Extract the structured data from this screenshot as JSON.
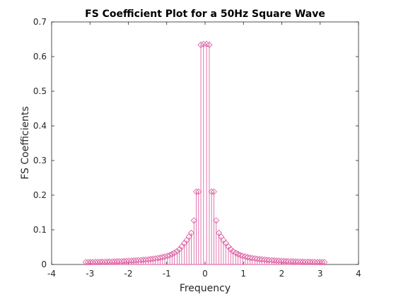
{
  "chart_data": {
    "type": "stem",
    "title": "FS Coefficient Plot for a 50Hz Square Wave",
    "xlabel": "Frequency",
    "ylabel": "FS Coefficients",
    "xlim": [
      -4,
      4
    ],
    "ylim": [
      0,
      0.7
    ],
    "xticks": [
      "-4",
      "-3",
      "-2",
      "-1",
      "0",
      "1",
      "2",
      "3",
      "4"
    ],
    "yticks": [
      "0",
      "0.1",
      "0.2",
      "0.3",
      "0.4",
      "0.5",
      "0.6",
      "0.7"
    ],
    "grid": false,
    "color": "#d9559a",
    "marker": "diamond",
    "series": [
      {
        "x": [
          -3.11,
          -3.05,
          -2.99,
          -2.93,
          -2.86,
          -2.8,
          -2.74,
          -2.68,
          -2.61,
          -2.55,
          -2.49,
          -2.42,
          -2.36,
          -2.3,
          -2.24,
          -2.17,
          -2.11,
          -2.05,
          -1.99,
          -1.92,
          -1.86,
          -1.8,
          -1.74,
          -1.67,
          -1.61,
          -1.55,
          -1.48,
          -1.42,
          -1.36,
          -1.3,
          -1.23,
          -1.17,
          -1.11,
          -1.05,
          -0.98,
          -0.92,
          -0.86,
          -0.8,
          -0.73,
          -0.67,
          -0.61,
          -0.54,
          -0.48,
          -0.42,
          -0.36,
          -0.29,
          -0.23,
          -0.17,
          -0.11,
          -0.04,
          0.04,
          0.11,
          0.17,
          0.23,
          0.29,
          0.36,
          0.42,
          0.48,
          0.54,
          0.61,
          0.67,
          0.73,
          0.8,
          0.86,
          0.92,
          0.98,
          1.05,
          1.11,
          1.17,
          1.23,
          1.3,
          1.36,
          1.42,
          1.48,
          1.55,
          1.61,
          1.67,
          1.74,
          1.8,
          1.86,
          1.92,
          1.99,
          2.05,
          2.11,
          2.17,
          2.24,
          2.3,
          2.36,
          2.42,
          2.49,
          2.55,
          2.61,
          2.68,
          2.74,
          2.8,
          2.86,
          2.93,
          2.99,
          3.05,
          3.11
        ],
        "y": [
          0.0064,
          0.0066,
          0.0067,
          0.0068,
          0.007,
          0.0071,
          0.0073,
          0.0075,
          0.0076,
          0.0078,
          0.008,
          0.0082,
          0.0085,
          0.0087,
          0.009,
          0.0092,
          0.0095,
          0.0099,
          0.0102,
          0.0106,
          0.011,
          0.0115,
          0.012,
          0.0125,
          0.0131,
          0.0137,
          0.0144,
          0.0152,
          0.0161,
          0.0171,
          0.0182,
          0.0195,
          0.021,
          0.0227,
          0.0247,
          0.0271,
          0.03,
          0.0335,
          0.038,
          0.0437,
          0.0513,
          0.0616,
          0.07,
          0.08,
          0.091,
          0.127,
          0.21,
          0.21,
          0.634,
          0.636,
          0.636,
          0.634,
          0.21,
          0.21,
          0.127,
          0.091,
          0.08,
          0.07,
          0.0616,
          0.0513,
          0.0437,
          0.038,
          0.0335,
          0.03,
          0.0271,
          0.0247,
          0.0227,
          0.021,
          0.0195,
          0.0182,
          0.0171,
          0.0161,
          0.0152,
          0.0144,
          0.0137,
          0.0131,
          0.0125,
          0.012,
          0.0115,
          0.011,
          0.0106,
          0.0102,
          0.0099,
          0.0095,
          0.0092,
          0.009,
          0.0087,
          0.0085,
          0.0082,
          0.008,
          0.0078,
          0.0076,
          0.0075,
          0.0073,
          0.0071,
          0.007,
          0.0068,
          0.0067,
          0.0066,
          0.0064
        ]
      }
    ]
  }
}
